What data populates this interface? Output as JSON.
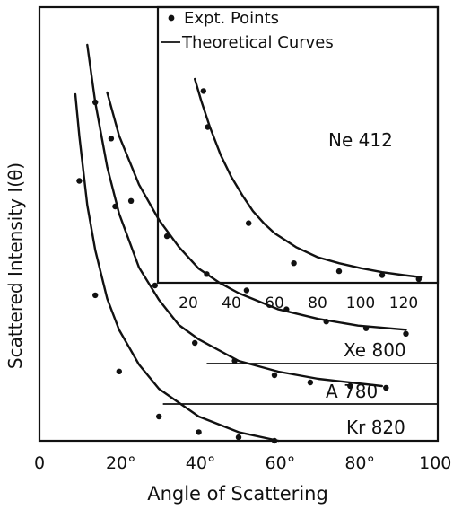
{
  "chart_data": [
    {
      "type": "line",
      "ylabel": "Scattered Intensity I(θ)",
      "xlabel": "Angle of Scattering",
      "x_tick_labels": [
        "0",
        "20°",
        "40°",
        "60°",
        "80°",
        "100°"
      ],
      "xlim": [
        0,
        100
      ],
      "series": [
        {
          "name": "Xe 800",
          "baseline_from_x": 42,
          "curve_x": [
            17,
            20,
            25,
            30,
            35,
            40,
            45,
            50,
            60,
            70,
            80,
            92
          ],
          "curve_y": [
            1.0,
            0.84,
            0.66,
            0.53,
            0.43,
            0.35,
            0.3,
            0.26,
            0.2,
            0.165,
            0.14,
            0.125
          ],
          "points_x": [
            18,
            23,
            32,
            42,
            52,
            62,
            72,
            82,
            92
          ],
          "points_y": [
            0.83,
            0.6,
            0.47,
            0.33,
            0.27,
            0.2,
            0.155,
            0.13,
            0.11
          ]
        },
        {
          "name": "A 780",
          "baseline_from_x": 31,
          "curve_x": [
            12,
            14,
            17,
            20,
            25,
            30,
            35,
            40,
            50,
            60,
            70,
            86
          ],
          "curve_y": [
            1.0,
            0.84,
            0.66,
            0.53,
            0.38,
            0.29,
            0.22,
            0.18,
            0.12,
            0.09,
            0.07,
            0.05
          ],
          "points_x": [
            14,
            19,
            29,
            39,
            49,
            59,
            68,
            78,
            87
          ],
          "points_y": [
            0.84,
            0.55,
            0.33,
            0.17,
            0.12,
            0.08,
            0.06,
            0.05,
            0.045
          ]
        },
        {
          "name": "Kr 820",
          "baseline_from_x": 30,
          "curve_x": [
            9,
            10,
            12,
            14,
            17,
            20,
            25,
            30,
            40,
            50,
            60
          ],
          "curve_y": [
            1.0,
            0.88,
            0.68,
            0.55,
            0.41,
            0.32,
            0.22,
            0.15,
            0.07,
            0.025,
            0.0
          ],
          "points_x": [
            10,
            14,
            20,
            30,
            40,
            50,
            59
          ],
          "points_y": [
            0.75,
            0.42,
            0.2,
            0.07,
            0.025,
            0.01,
            0.0
          ]
        }
      ]
    },
    {
      "type": "line",
      "x_tick_labels": [
        "20",
        "40",
        "60",
        "80",
        "100",
        "120"
      ],
      "xlim": [
        10,
        130
      ],
      "legend": {
        "points_label": "Expt. Points",
        "curve_label": "Theoretical Curves",
        "placement": "top"
      },
      "annotation": "Ne 412",
      "series": [
        {
          "name": "Ne 412",
          "curve_x": [
            23,
            26,
            30,
            35,
            40,
            45,
            50,
            55,
            60,
            70,
            80,
            90,
            100,
            110,
            120,
            128
          ],
          "curve_y": [
            1.0,
            0.89,
            0.76,
            0.62,
            0.51,
            0.42,
            0.34,
            0.28,
            0.23,
            0.16,
            0.11,
            0.08,
            0.055,
            0.035,
            0.02,
            0.01
          ],
          "points_x": [
            27,
            29,
            48,
            69,
            90,
            110,
            127
          ],
          "points_y": [
            0.94,
            0.76,
            0.28,
            0.08,
            0.04,
            0.02,
            0.0
          ]
        }
      ]
    }
  ]
}
